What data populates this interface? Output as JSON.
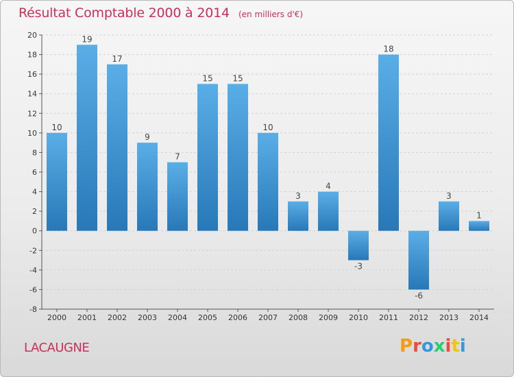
{
  "header": {
    "title": "Résultat Comptable 2000 à 2014",
    "subtitle": "(en milliers d'€)"
  },
  "footer": {
    "commune": "LACAUGNE",
    "brand": "Proxiti"
  },
  "colors": {
    "title": "#c8305a",
    "bar_light": "#5aaee6",
    "bar_dark": "#2878b8",
    "brand_letters": [
      "#f39c12",
      "#e74c3c",
      "#3498db",
      "#2ecc71",
      "#e74c3c",
      "#f1c40f",
      "#3498db"
    ]
  },
  "chart_data": {
    "type": "bar",
    "title": "Résultat Comptable 2000 à 2014",
    "subtitle": "(en milliers d'€)",
    "categories": [
      "2000",
      "2001",
      "2002",
      "2003",
      "2004",
      "2005",
      "2006",
      "2007",
      "2008",
      "2009",
      "2010",
      "2011",
      "2012",
      "2013",
      "2014"
    ],
    "values": [
      10,
      19,
      17,
      9,
      7,
      15,
      15,
      10,
      3,
      4,
      -3,
      18,
      -6,
      3,
      1
    ],
    "value_labels": [
      "10",
      "19",
      "17",
      "9",
      "7",
      "15",
      "15",
      "10",
      "3",
      "4",
      "-3",
      "18",
      "-6",
      "3",
      "1"
    ],
    "y_ticks": [
      "20",
      "18",
      "16",
      "14",
      "12",
      "10",
      "8",
      "6",
      "4",
      "2",
      "0",
      "-2",
      "-4",
      "-6",
      "-8"
    ],
    "ylim": [
      -8,
      20
    ],
    "xlabel": "",
    "ylabel": "",
    "grid": true
  }
}
